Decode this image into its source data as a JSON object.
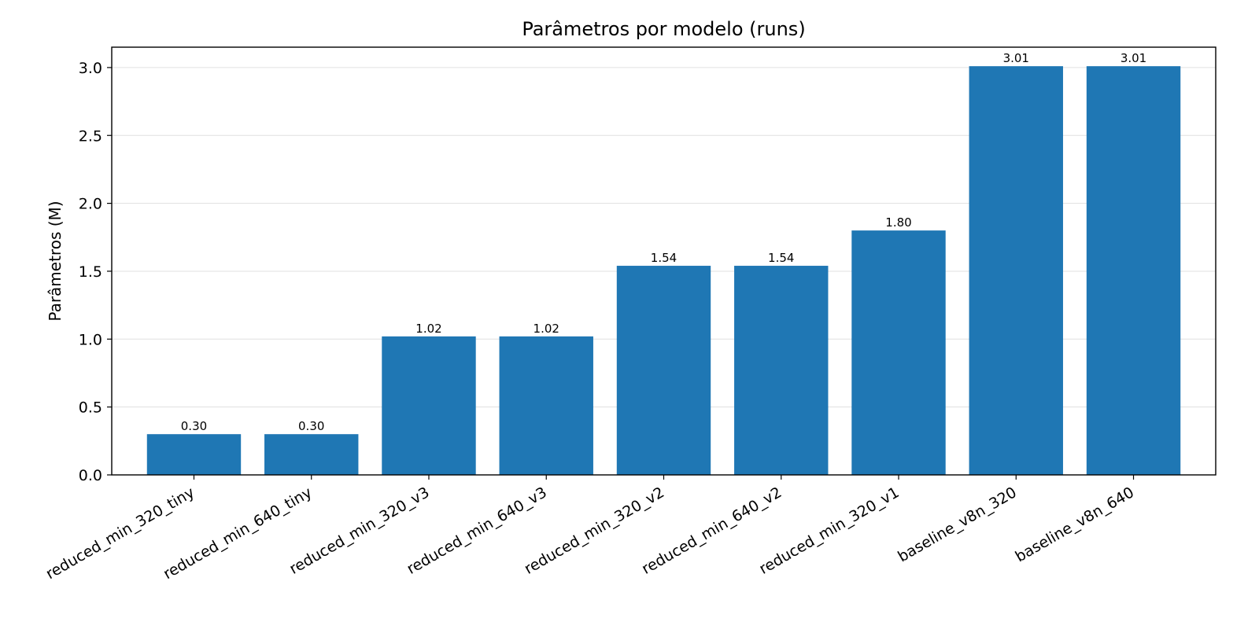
{
  "chart_data": {
    "type": "bar",
    "title": "Parâmetros por modelo (runs)",
    "xlabel": "",
    "ylabel": "Parâmetros (M)",
    "categories": [
      "reduced_min_320_tiny",
      "reduced_min_640_tiny",
      "reduced_min_320_v3",
      "reduced_min_640_v3",
      "reduced_min_320_v2",
      "reduced_min_640_v2",
      "reduced_min_320_v1",
      "baseline_v8n_320",
      "baseline_v8n_640"
    ],
    "values": [
      0.3,
      0.3,
      1.02,
      1.02,
      1.54,
      1.54,
      1.8,
      3.01,
      3.01
    ],
    "value_labels": [
      "0.30",
      "0.30",
      "1.02",
      "1.02",
      "1.54",
      "1.54",
      "1.80",
      "3.01",
      "3.01"
    ],
    "ylim": [
      0,
      3.15
    ],
    "yticks": [
      0.0,
      0.5,
      1.0,
      1.5,
      2.0,
      2.5,
      3.0
    ],
    "ytick_labels": [
      "0.0",
      "0.5",
      "1.0",
      "1.5",
      "2.0",
      "2.5",
      "3.0"
    ],
    "grid": true,
    "grid_axis": "y",
    "bar_color": "#1f77b4"
  }
}
